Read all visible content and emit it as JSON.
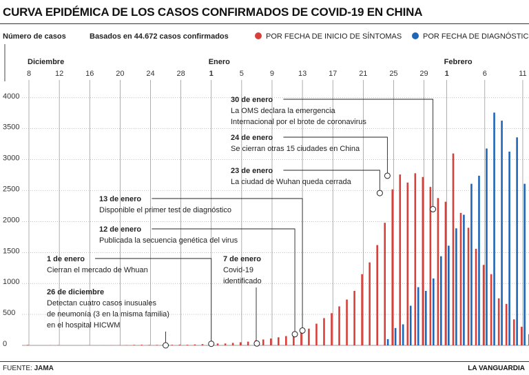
{
  "title": "CURVA EPIDÉMICA DE LOS CASOS CONFIRMADOS DE COVID-19 EN CHINA",
  "source_label": "FUENTE:",
  "source_name": "JAMA",
  "publisher": "LA VANGUARDIA",
  "colors": {
    "onset": "#d6403a",
    "diagnosis": "#1f66b7",
    "grid": "#9a9a9a",
    "text": "#222222"
  },
  "chart_data": {
    "type": "bar",
    "ylabel": "Número de casos",
    "subtitle": "Basados en 44.672 casos confirmados",
    "ylim": [
      0,
      4000
    ],
    "yticks": [
      0,
      500,
      1000,
      1500,
      2000,
      2500,
      3000,
      3500,
      4000
    ],
    "xlim_day_index": [
      0,
      66
    ],
    "months": [
      {
        "label": "Diciembre",
        "day_index": 0
      },
      {
        "label": "Enero",
        "day_index": 24
      },
      {
        "label": "Febrero",
        "day_index": 55
      }
    ],
    "xticks": [
      {
        "label": "8",
        "day_index": 0,
        "bold": false
      },
      {
        "label": "12",
        "day_index": 4,
        "bold": false
      },
      {
        "label": "16",
        "day_index": 8,
        "bold": false
      },
      {
        "label": "20",
        "day_index": 12,
        "bold": false
      },
      {
        "label": "24",
        "day_index": 16,
        "bold": false
      },
      {
        "label": "28",
        "day_index": 20,
        "bold": false
      },
      {
        "label": "1",
        "day_index": 24,
        "bold": true
      },
      {
        "label": "5",
        "day_index": 28,
        "bold": false
      },
      {
        "label": "9",
        "day_index": 32,
        "bold": false
      },
      {
        "label": "13",
        "day_index": 36,
        "bold": false
      },
      {
        "label": "17",
        "day_index": 40,
        "bold": false
      },
      {
        "label": "21",
        "day_index": 44,
        "bold": false
      },
      {
        "label": "25",
        "day_index": 48,
        "bold": false
      },
      {
        "label": "29",
        "day_index": 52,
        "bold": false
      },
      {
        "label": "1",
        "day_index": 55,
        "bold": true
      },
      {
        "label": "6",
        "day_index": 60,
        "bold": false
      },
      {
        "label": "11",
        "day_index": 65,
        "bold": false
      }
    ],
    "series": [
      {
        "name": "POR FECHA DE INICIO DE SÍNTOMAS",
        "color": "#d6403a",
        "start_day_index": 0,
        "values": [
          8,
          0,
          0,
          3,
          5,
          0,
          0,
          0,
          3,
          0,
          2,
          2,
          3,
          5,
          8,
          10,
          8,
          8,
          10,
          10,
          12,
          10,
          15,
          20,
          25,
          30,
          30,
          40,
          50,
          60,
          80,
          95,
          110,
          130,
          150,
          170,
          210,
          270,
          350,
          440,
          520,
          630,
          740,
          880,
          1150,
          1340,
          1620,
          1980,
          2520,
          2760,
          2630,
          2780,
          2720,
          2560,
          2380,
          2320,
          3100,
          2140,
          1900,
          1560,
          1300,
          1150,
          760,
          670,
          420,
          300,
          180,
          100
        ]
      },
      {
        "name": "POR FECHA DE DIAGNÓSTICO",
        "color": "#1f66b7",
        "start_day_index": 43,
        "values": [
          0,
          0,
          0,
          0,
          100,
          280,
          340,
          640,
          940,
          880,
          1080,
          1440,
          1610,
          1890,
          2110,
          2610,
          2740,
          3180,
          3760,
          3630,
          3130,
          3360,
          2610,
          3170,
          2880,
          2120
        ]
      }
    ],
    "annotations": [
      {
        "date": "30 de enero",
        "text": [
          "La OMS declara la emergencia",
          "Internacional por el brote de coronavirus"
        ],
        "day_index": 53,
        "value": 2200
      },
      {
        "date": "24 de enero",
        "text": [
          "Se cierran otras 15 ciudades en China"
        ],
        "day_index": 47,
        "value": 2740
      },
      {
        "date": "23 de enero",
        "text": [
          "La ciudad de Wuhan queda cerrada"
        ],
        "day_index": 46,
        "value": 2460
      },
      {
        "date": "13 de enero",
        "text": [
          "Disponible el primer test de diagnóstico"
        ],
        "day_index": 36,
        "value": 240
      },
      {
        "date": "12 de enero",
        "text": [
          "Publicada la secuencia genética del virus"
        ],
        "day_index": 35,
        "value": 180
      },
      {
        "date": "7 de enero",
        "text": [
          "Covid-19",
          "identificado"
        ],
        "day_index": 30,
        "value": 30
      },
      {
        "date": "1 de enero",
        "text": [
          "Cierran el mercado de Whuan"
        ],
        "day_index": 24,
        "value": 25
      },
      {
        "date": "26 de diciembre",
        "text": [
          "Detectan cuatro casos inusuales",
          "de neumonía (3 en la misma familia)",
          "en el hospital HICWM"
        ],
        "day_index": 18,
        "value": -20
      }
    ]
  }
}
